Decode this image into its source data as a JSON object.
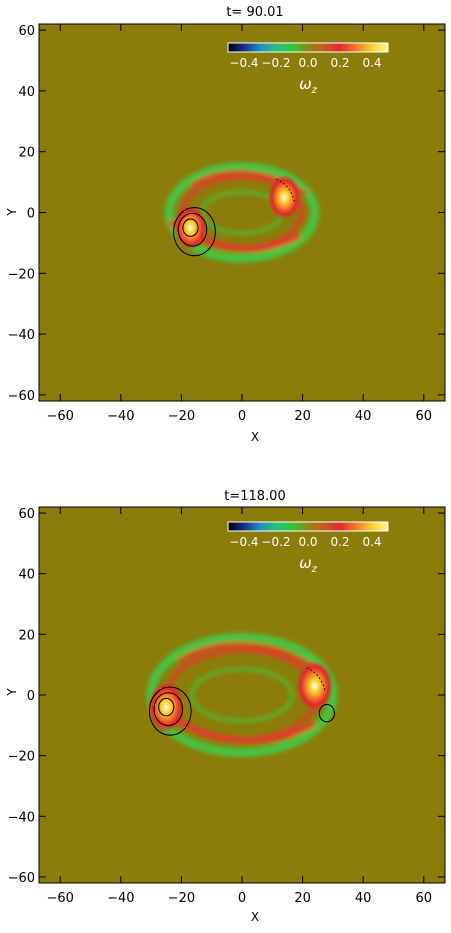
{
  "chart_data": [
    {
      "type": "heatmap",
      "title": "t= 90.01",
      "xlabel": "X",
      "ylabel": "Y",
      "xlim": [
        -67,
        67
      ],
      "ylim": [
        -62,
        62
      ],
      "xticks": [
        -60,
        -40,
        -20,
        0,
        20,
        40,
        60
      ],
      "yticks": [
        -60,
        -40,
        -20,
        0,
        20,
        40,
        60
      ],
      "colorbar": {
        "label": "ω",
        "label_subscript": "z",
        "ticks": [
          "−0.4",
          "−0.2",
          "0.0",
          "0.2",
          "0.4"
        ],
        "range": [
          -0.5,
          0.5
        ],
        "colors": [
          "#000000",
          "#1a2c8c",
          "#1f8fc0",
          "#29c07a",
          "#2fc83a",
          "#8a8a10",
          "#c85a20",
          "#e02a2a",
          "#f07a28",
          "#f8d030",
          "#fff8a0"
        ]
      },
      "field": {
        "background_value": 0.0,
        "ring": {
          "center": [
            0,
            0
          ],
          "radius_x": 24,
          "radius_y": 15
        },
        "vortices": [
          {
            "x": -17,
            "y": -5,
            "peak": 0.45
          },
          {
            "x": 14,
            "y": 5,
            "peak": 0.45
          }
        ],
        "contours": [
          {
            "x": -17,
            "y": -5,
            "levels": 3
          }
        ]
      }
    },
    {
      "type": "heatmap",
      "title": "t=118.00",
      "xlabel": "X",
      "ylabel": "Y",
      "xlim": [
        -67,
        67
      ],
      "ylim": [
        -62,
        62
      ],
      "xticks": [
        -60,
        -40,
        -20,
        0,
        20,
        40,
        60
      ],
      "yticks": [
        -60,
        -40,
        -20,
        0,
        20,
        40,
        60
      ],
      "colorbar": {
        "label": "ω",
        "label_subscript": "z",
        "ticks": [
          "−0.4",
          "−0.2",
          "0.0",
          "0.2",
          "0.4"
        ],
        "range": [
          -0.5,
          0.5
        ],
        "colors": [
          "#000000",
          "#1a2c8c",
          "#1f8fc0",
          "#29c07a",
          "#2fc83a",
          "#8a8a10",
          "#c85a20",
          "#e02a2a",
          "#f07a28",
          "#f8d030",
          "#fff8a0"
        ]
      },
      "field": {
        "background_value": 0.0,
        "ring": {
          "center": [
            0,
            0
          ],
          "radius_x": 30,
          "radius_y": 19
        },
        "vortices": [
          {
            "x": -25,
            "y": -4,
            "peak": 0.5
          },
          {
            "x": 24,
            "y": 3,
            "peak": 0.5
          }
        ],
        "contours": [
          {
            "x": -25,
            "y": -4,
            "levels": 3
          },
          {
            "x": 28,
            "y": -6,
            "levels": 1
          }
        ]
      }
    }
  ]
}
